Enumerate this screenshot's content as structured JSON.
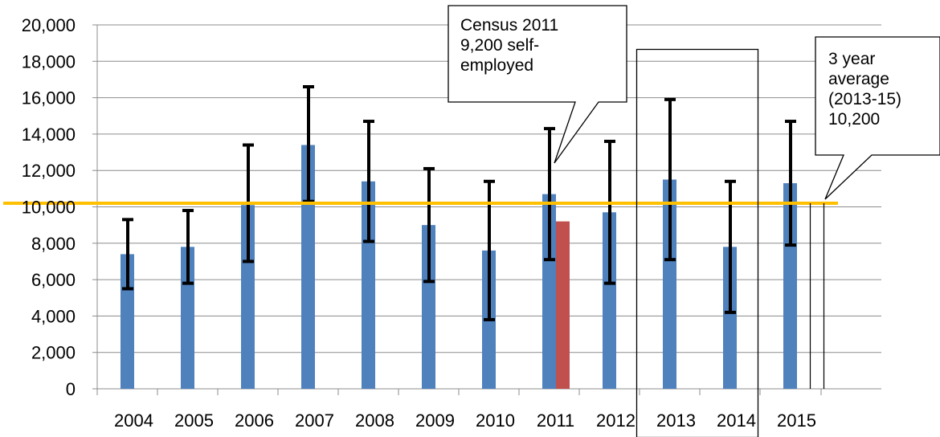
{
  "chart_data": {
    "type": "bar",
    "title": "",
    "xlabel": "",
    "ylabel": "",
    "categories": [
      "2004",
      "2005",
      "2006",
      "2007",
      "2008",
      "2009",
      "2010",
      "2011",
      "2012",
      "2013",
      "2014",
      "2015"
    ],
    "ylim": [
      0,
      20000
    ],
    "ytick_values": [
      0,
      2000,
      4000,
      6000,
      8000,
      10000,
      12000,
      14000,
      16000,
      18000,
      20000
    ],
    "ytick_labels": [
      "0",
      "2,000",
      "4,000",
      "6,000",
      "8,000",
      "10,000",
      "12,000",
      "14,000",
      "16,000",
      "18,000",
      "20,000"
    ],
    "grid": true,
    "series": [
      {
        "color": "#4f81bd",
        "values": [
          7400,
          7800,
          10100,
          13400,
          11400,
          9000,
          7600,
          10700,
          9700,
          11500,
          7800,
          11300
        ],
        "error_low": [
          5500,
          5800,
          7000,
          10300,
          8100,
          5900,
          3800,
          7100,
          5800,
          7100,
          4200,
          7900
        ],
        "error_high": [
          9300,
          9800,
          13400,
          16600,
          14700,
          12100,
          11400,
          14300,
          13600,
          15900,
          11400,
          14700
        ]
      },
      {
        "color": "#c0504d",
        "values": [
          null,
          null,
          null,
          null,
          null,
          null,
          null,
          9200,
          null,
          null,
          null,
          null
        ]
      }
    ],
    "reference_line": {
      "value": 10200,
      "color": "#ffc000"
    },
    "annotations": [
      {
        "text": "Census 2011\n9,200 self-\nemployed"
      },
      {
        "text": "3 year\naverage\n(2013-15)\n10,200"
      }
    ]
  }
}
